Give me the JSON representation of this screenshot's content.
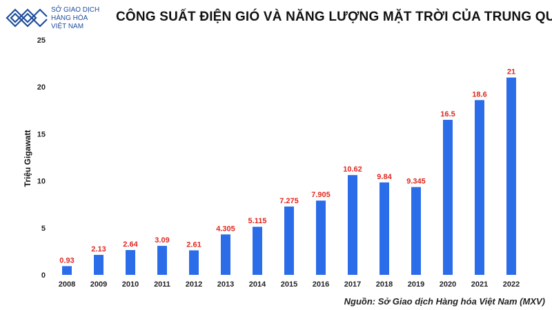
{
  "logo": {
    "line1": "SỞ GIAO DỊCH",
    "line2": "HÀNG HÓA",
    "line3": "VIỆT NAM"
  },
  "source": "Nguồn: Sở Giao dịch Hàng hóa Việt Nam (MXV)",
  "colors": {
    "bar": "#2b6de8",
    "label": "#e0271f",
    "logo": "#1f4e9c"
  },
  "chart_data": {
    "type": "bar",
    "title": "CÔNG SUẤT ĐIỆN GIÓ VÀ NĂNG LƯỢNG MẶT TRỜI CỦA TRUNG QUỐC",
    "xlabel": "",
    "ylabel": "Triệu Gigawatt",
    "ylim": [
      0,
      25
    ],
    "yticks": [
      0,
      5,
      10,
      15,
      20,
      25
    ],
    "grid": false,
    "categories": [
      "2008",
      "2009",
      "2010",
      "2011",
      "2012",
      "2013",
      "2014",
      "2015",
      "2016",
      "2017",
      "2018",
      "2019",
      "2020",
      "2021",
      "2022"
    ],
    "values": [
      0.93,
      2.13,
      2.64,
      3.09,
      2.61,
      4.305,
      5.115,
      7.275,
      7.905,
      10.62,
      9.84,
      9.345,
      16.5,
      18.6,
      21
    ],
    "labels": [
      "0.93",
      "2.13",
      "2.64",
      "3.09",
      "2.61",
      "4.305",
      "5.115",
      "7.275",
      "7.905",
      "10.62",
      "9.84",
      "9.345",
      "16.5",
      "18.6",
      "21"
    ]
  }
}
